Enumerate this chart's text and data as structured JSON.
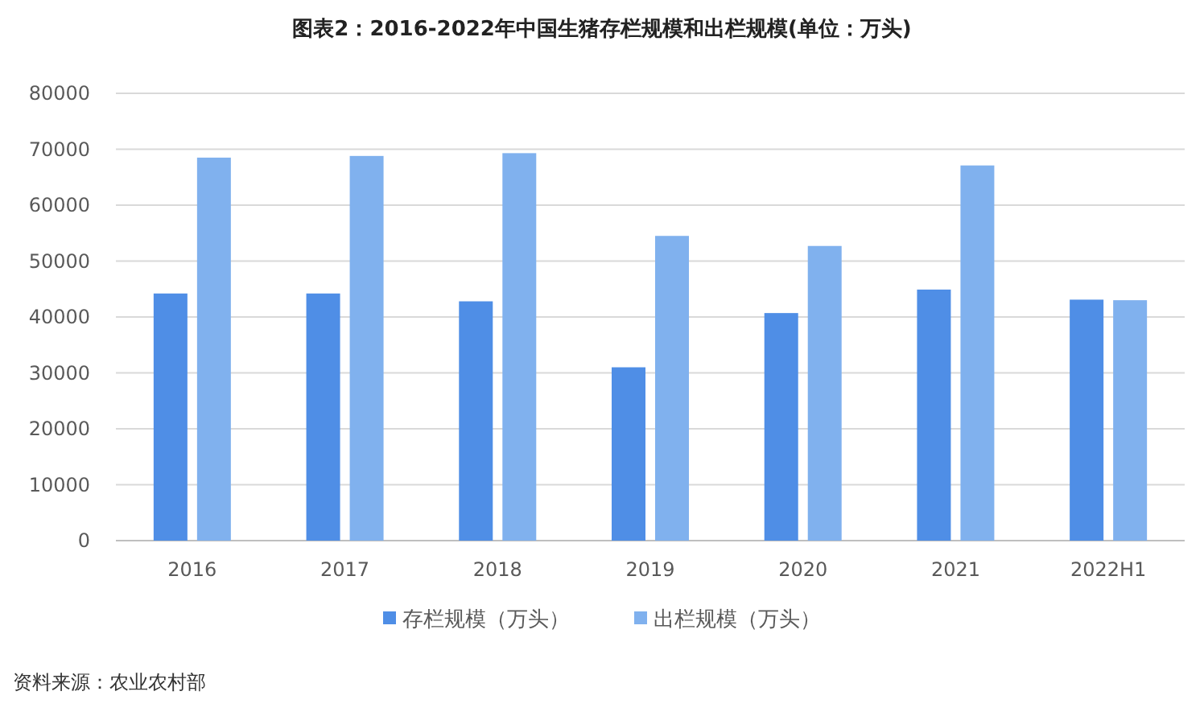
{
  "chart_data": {
    "type": "bar",
    "title": "图表2：2016-2022年中国生猪存栏规模和出栏规模(单位：万头)",
    "categories": [
      "2016",
      "2017",
      "2018",
      "2019",
      "2020",
      "2021",
      "2022H1"
    ],
    "series": [
      {
        "name": "存栏规模（万头）",
        "color": "#4f8ee6",
        "values": [
          44200,
          44200,
          42800,
          31000,
          40700,
          44900,
          43100
        ]
      },
      {
        "name": "出栏规模（万头）",
        "color": "#80b1ee",
        "values": [
          68500,
          68800,
          69300,
          54500,
          52700,
          67100,
          43000
        ]
      }
    ],
    "ylim": [
      0,
      80000
    ],
    "yticks": [
      0,
      10000,
      20000,
      30000,
      40000,
      50000,
      60000,
      70000,
      80000
    ],
    "grid": "y",
    "legend": "bottom",
    "annotations": [
      "资料来源：农业农村部"
    ]
  }
}
